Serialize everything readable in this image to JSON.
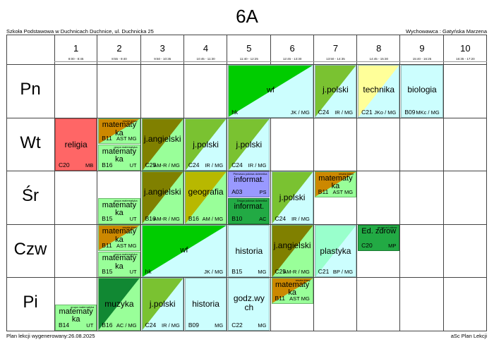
{
  "class_name": "6A",
  "school": "Szkoła Podstawowa w Duchnicach Duchnice, ul. Duchnicka 25",
  "homeroom": "Wychowawca : Gatyńska Marzena",
  "footer": {
    "generated": "Plan lekcji wygenerowany:26.08.2025",
    "credit": "aSc Plan Lekcji"
  },
  "periods": [
    {
      "num": "1",
      "time": "8:00 - 8:45"
    },
    {
      "num": "2",
      "time": "8:55 - 9:40"
    },
    {
      "num": "3",
      "time": "9:50 - 10:35"
    },
    {
      "num": "4",
      "time": "10:45 - 11:30"
    },
    {
      "num": "5",
      "time": "11:40 - 12:25"
    },
    {
      "num": "6",
      "time": "12:45 - 13:30"
    },
    {
      "num": "7",
      "time": "13:50 - 14:35"
    },
    {
      "num": "8",
      "time": "14:45 - 15:30"
    },
    {
      "num": "9",
      "time": "15:40 - 16:25"
    },
    {
      "num": "10",
      "time": "16:35 - 17:20"
    }
  ],
  "days": [
    "Pn",
    "Wt",
    "Śr",
    "Czw",
    "Pi"
  ],
  "lessons": [
    {
      "day": 0,
      "period": 5,
      "span": 2,
      "subject": "wf",
      "room": "hk",
      "teacher": "JK / MG",
      "bg": "#ccfefe",
      "tri": "#00cc00",
      "fs": 11,
      "subject_top": 30
    },
    {
      "day": 0,
      "period": 7,
      "span": 1,
      "subject": "j.polski",
      "room": "C24",
      "teacher": "IR / MG",
      "bg": "#ccfefe",
      "tri": "#7ac231",
      "fs": 12,
      "subject_top": 28
    },
    {
      "day": 0,
      "period": 8,
      "span": 1,
      "subject": "technika",
      "room": "C21",
      "teacher": "JKo / MG",
      "bg": "#ccfefe",
      "tri": "#ffff99",
      "fs": 12,
      "subject_top": 28
    },
    {
      "day": 0,
      "period": 9,
      "span": 1,
      "subject": "biologia",
      "room": "B09",
      "teacher": "MKc / MG",
      "bg": "#ccfefe",
      "fs": 12,
      "subject_top": 28
    },
    {
      "day": 1,
      "period": 1,
      "span": 1,
      "subject": "religia",
      "room": "C20",
      "teacher": "MB",
      "bg": "#ff6666",
      "fs": 12,
      "subject_top": 30
    },
    {
      "day": 1,
      "period": 2,
      "span": 1,
      "half": "top",
      "subject": "matematyka",
      "room": "B11",
      "teacher": "AST MG",
      "bg": "#99ff99",
      "tri": "#cc8800",
      "group": "reszta klasy",
      "fs": 11,
      "subject_top": 7
    },
    {
      "day": 1,
      "period": 2,
      "span": 1,
      "half": "bottom",
      "subject": "matematyka",
      "room": "B16",
      "teacher": "UT",
      "bg": "#99ff99",
      "group": "grupa matematyka",
      "fs": 11,
      "subject_top": 7
    },
    {
      "day": 1,
      "period": 3,
      "span": 1,
      "subject": "j.angielski",
      "room": "C25",
      "teacher": "AM-R / MG",
      "bg": "#99ff99",
      "tri": "#808000",
      "fs": 12,
      "subject_top": 22
    },
    {
      "day": 1,
      "period": 4,
      "span": 1,
      "subject": "j.polski",
      "room": "C24",
      "teacher": "IR / MG",
      "bg": "#ccfefe",
      "tri": "#7ac231",
      "fs": 12,
      "subject_top": 30
    },
    {
      "day": 1,
      "period": 5,
      "span": 1,
      "subject": "j.polski",
      "room": "C24",
      "teacher": "IR / MG",
      "bg": "#ccfefe",
      "tri": "#7ac231",
      "fs": 12,
      "subject_top": 30
    },
    {
      "day": 2,
      "period": 2,
      "span": 1,
      "half": "bottom",
      "subject": "matematyka",
      "room": "B15",
      "teacher": "UT",
      "bg": "#99ff99",
      "group": "grupa matematyka",
      "fs": 11,
      "subject_top": 7
    },
    {
      "day": 2,
      "period": 3,
      "span": 1,
      "subject": "j.angielski",
      "room": "B16",
      "teacher": "AM-R / MG",
      "bg": "#99ff99",
      "tri": "#808000",
      "fs": 12,
      "subject_top": 22
    },
    {
      "day": 2,
      "period": 4,
      "span": 1,
      "subject": "geografia",
      "room": "B16",
      "teacher": "AM / MG",
      "bg": "#99ff99",
      "tri": "#b8b800",
      "fs": 12,
      "subject_top": 22
    },
    {
      "day": 2,
      "period": 5,
      "span": 1,
      "half": "top",
      "subject": "informat.",
      "room": "A03",
      "teacher": "PS",
      "bg": "#9999ff",
      "group": "Pierwsza połowa dziennika",
      "fs": 11,
      "subject_top": 12
    },
    {
      "day": 2,
      "period": 5,
      "span": 1,
      "half": "bottom",
      "subject": "informat.",
      "room": "B10",
      "teacher": "AC",
      "bg": "#22aa44",
      "group": "Druga połowa dziennika",
      "fs": 11,
      "subject_top": 12
    },
    {
      "day": 2,
      "period": 6,
      "span": 1,
      "subject": "j.polski",
      "room": "C24",
      "teacher": "IR / MG",
      "bg": "#ccfefe",
      "tri": "#7ac231",
      "fs": 12,
      "subject_top": 30
    },
    {
      "day": 2,
      "period": 7,
      "span": 1,
      "half": "top",
      "subject": "matematyka",
      "room": "B11",
      "teacher": "AST MG",
      "bg": "#99ff99",
      "tri": "#cc8800",
      "group": "reszta klasy",
      "fs": 11,
      "subject_top": 7
    },
    {
      "day": 3,
      "period": 2,
      "span": 1,
      "half": "top",
      "subject": "matematyka",
      "room": "B11",
      "teacher": "AST MG",
      "bg": "#99ff99",
      "tri": "#cc8800",
      "group": "reszta klasy",
      "fs": 11,
      "subject_top": 7
    },
    {
      "day": 3,
      "period": 2,
      "span": 1,
      "half": "bottom",
      "subject": "matematyka",
      "room": "B15",
      "teacher": "UT",
      "bg": "#99ff99",
      "group": "grupa matematyka",
      "fs": 11,
      "subject_top": 7
    },
    {
      "day": 3,
      "period": 3,
      "span": 2,
      "subject": "wf",
      "room": "hk",
      "teacher": "JK / MG",
      "bg": "#ccfefe",
      "tri": "#00cc00",
      "fs": 11,
      "subject_top": 30
    },
    {
      "day": 3,
      "period": 5,
      "span": 1,
      "subject": "historia",
      "room": "B15",
      "teacher": "MG",
      "bg": "#ccfefe",
      "fs": 12,
      "subject_top": 30
    },
    {
      "day": 3,
      "period": 6,
      "span": 1,
      "subject": "j.angielski",
      "room": "C25",
      "teacher": "AM-R / MG",
      "bg": "#99ff99",
      "tri": "#808000",
      "fs": 12,
      "subject_top": 22
    },
    {
      "day": 3,
      "period": 7,
      "span": 1,
      "subject": "plastyka",
      "room": "C21",
      "teacher": "BP / MG",
      "bg": "#ccfefe",
      "tri": "#99ffcc",
      "fs": 12,
      "subject_top": 30
    },
    {
      "day": 3,
      "period": 8,
      "span": 1,
      "half": "top",
      "subject": "Ed. zdrow",
      "room": "C20",
      "teacher": "MP",
      "bg": "#22aa44",
      "group": "grupa ed zdrow",
      "fs": 11,
      "subject_top": 6
    },
    {
      "day": 4,
      "period": 1,
      "span": 1,
      "half": "bottom",
      "subject": "matematyka",
      "room": "B14",
      "teacher": "UT",
      "bg": "#99ff99",
      "group": "grupa matematyka",
      "fs": 11,
      "subject_top": 7
    },
    {
      "day": 4,
      "period": 2,
      "span": 1,
      "subject": "muzyka",
      "room": "B16",
      "teacher": "AC / MG",
      "bg": "#99ff99",
      "tri": "#118833",
      "fs": 12,
      "subject_top": 30
    },
    {
      "day": 4,
      "period": 3,
      "span": 1,
      "subject": "j.polski",
      "room": "C24",
      "teacher": "IR / MG",
      "bg": "#ccfefe",
      "tri": "#7ac231",
      "fs": 12,
      "subject_top": 30
    },
    {
      "day": 4,
      "period": 4,
      "span": 1,
      "subject": "historia",
      "room": "B09",
      "teacher": "MG",
      "bg": "#ccfefe",
      "fs": 12,
      "subject_top": 30
    },
    {
      "day": 4,
      "period": 5,
      "span": 1,
      "subject": "godz.wychowawcza",
      "subject_display": "godz.wy ch",
      "room": "C22",
      "teacher": "MG",
      "bg": "#ccfefe",
      "fs": 12,
      "subject_top": 22
    },
    {
      "day": 4,
      "period": 6,
      "span": 1,
      "half": "top",
      "subject": "matematyka",
      "room": "B11",
      "teacher": "AST MG",
      "bg": "#99ff99",
      "tri": "#cc8800",
      "group": "reszta klasy",
      "fs": 11,
      "subject_top": 7
    }
  ]
}
